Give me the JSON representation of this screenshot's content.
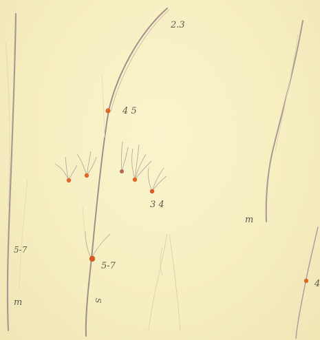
{
  "labels": {
    "hair_stage_23": "2.3",
    "hair_stage_45": "4 5",
    "hair_stage_34": "3 4",
    "hair_stage_57_left": "5-7",
    "hair_stage_57_mid": "5-7",
    "hair_m_left": "m",
    "hair_m_right": "m",
    "edge_mark": "4",
    "vertical_mark": "S"
  },
  "colors": {
    "paper": "#f7f0c4",
    "hair_line": "#9b8a8a",
    "faint_line": "#d8d0a8",
    "bulb_orange": "#e0662a",
    "bulb_dark": "#b2481a",
    "ink": "#5d5a4c"
  }
}
